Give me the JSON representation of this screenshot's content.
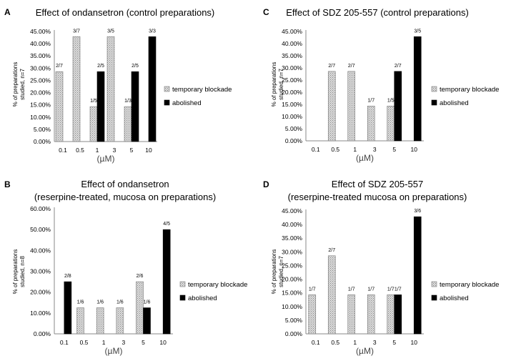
{
  "colors": {
    "temporary": "#d9d9d9",
    "abolished": "#000000",
    "axis": "#888888"
  },
  "chart_data": [
    {
      "panel": "A",
      "type": "bar",
      "title": [
        "Effect of ondansetron (control preparations)"
      ],
      "ylabel": [
        "% of preparations",
        "studied, n=7"
      ],
      "xlabel": "(µM)",
      "categories": [
        "0.1",
        "0.5",
        "1",
        "3",
        "5",
        "10"
      ],
      "ylim": [
        0,
        45
      ],
      "yticks": [
        "0.00%",
        "5.00%",
        "10.00%",
        "15.00%",
        "20.00%",
        "25.00%",
        "30.00%",
        "35.00%",
        "40.00%",
        "45.00%"
      ],
      "series": [
        {
          "name": "temporary blockade",
          "values": [
            28.57,
            42.86,
            14.29,
            42.86,
            14.29,
            0
          ],
          "labels": [
            "2/7",
            "3/7",
            "1/5",
            "3/5",
            "1/3",
            ""
          ]
        },
        {
          "name": "abolished",
          "values": [
            0,
            0,
            28.57,
            0,
            28.57,
            42.86
          ],
          "labels": [
            "",
            "",
            "2/5",
            "",
            "2/5",
            "3/3"
          ]
        }
      ]
    },
    {
      "panel": "C",
      "type": "bar",
      "title": [
        "Effect of SDZ 205-557 (control preparations)"
      ],
      "ylabel": [
        "% of preparations",
        "studied, n=7"
      ],
      "xlabel": "(µM)",
      "categories": [
        "0.1",
        "0.5",
        "1",
        "3",
        "5",
        "10"
      ],
      "ylim": [
        0,
        45
      ],
      "yticks": [
        "0.00%",
        "5.00%",
        "10.00%",
        "15.00%",
        "20.00%",
        "25.00%",
        "30.00%",
        "35.00%",
        "40.00%",
        "45.00%"
      ],
      "series": [
        {
          "name": "temporary blockade",
          "values": [
            0,
            28.57,
            28.57,
            14.29,
            14.29,
            0
          ],
          "labels": [
            "",
            "2/7",
            "2/7",
            "1/7",
            "1/5",
            ""
          ]
        },
        {
          "name": "abolished",
          "values": [
            0,
            0,
            0,
            0,
            28.57,
            42.86
          ],
          "labels": [
            "",
            "",
            "",
            "",
            "2/7",
            "3/5"
          ]
        }
      ]
    },
    {
      "panel": "B",
      "type": "bar",
      "title": [
        "Effect of ondansetron",
        "(reserpine-treated, mucosa on preparations)"
      ],
      "ylabel": [
        "% of preparations",
        "studied, n=8"
      ],
      "xlabel": "(µM)",
      "categories": [
        "0.1",
        "0.5",
        "1",
        "3",
        "5",
        "10"
      ],
      "ylim": [
        0,
        60
      ],
      "yticks": [
        "0.00%",
        "10.00%",
        "20.00%",
        "30.00%",
        "40.00%",
        "50.00%",
        "60.00%"
      ],
      "series": [
        {
          "name": "temporary blockade",
          "values": [
            0,
            12.5,
            12.5,
            12.5,
            25,
            0
          ],
          "labels": [
            "",
            "1/6",
            "1/6",
            "1/6",
            "2/6",
            ""
          ]
        },
        {
          "name": "abolished",
          "values": [
            25,
            0,
            0,
            0,
            12.5,
            50
          ],
          "labels": [
            "2/8",
            "",
            "",
            "",
            "1/6",
            "4/5"
          ]
        }
      ]
    },
    {
      "panel": "D",
      "type": "bar",
      "title": [
        "Effect of SDZ 205-557",
        "(reserpine-treated mucosa on preparations)"
      ],
      "ylabel": [
        "% of preparations",
        "studied, n=7"
      ],
      "xlabel": "(µM)",
      "categories": [
        "0.1",
        "0.5",
        "1",
        "3",
        "5",
        "10"
      ],
      "ylim": [
        0,
        45
      ],
      "yticks": [
        "0.00%",
        "5.00%",
        "10.00%",
        "15.00%",
        "20.00%",
        "25.00%",
        "30.00%",
        "35.00%",
        "40.00%",
        "45.00%"
      ],
      "series": [
        {
          "name": "temporary blockade",
          "values": [
            14.29,
            28.57,
            14.29,
            14.29,
            14.29,
            0
          ],
          "labels": [
            "1/7",
            "2/7",
            "1/7",
            "1/7",
            "1/7",
            ""
          ]
        },
        {
          "name": "abolished",
          "values": [
            0,
            0,
            0,
            0,
            14.29,
            42.86
          ],
          "labels": [
            "",
            "",
            "",
            "",
            "1/7",
            "3/6"
          ]
        }
      ]
    }
  ]
}
